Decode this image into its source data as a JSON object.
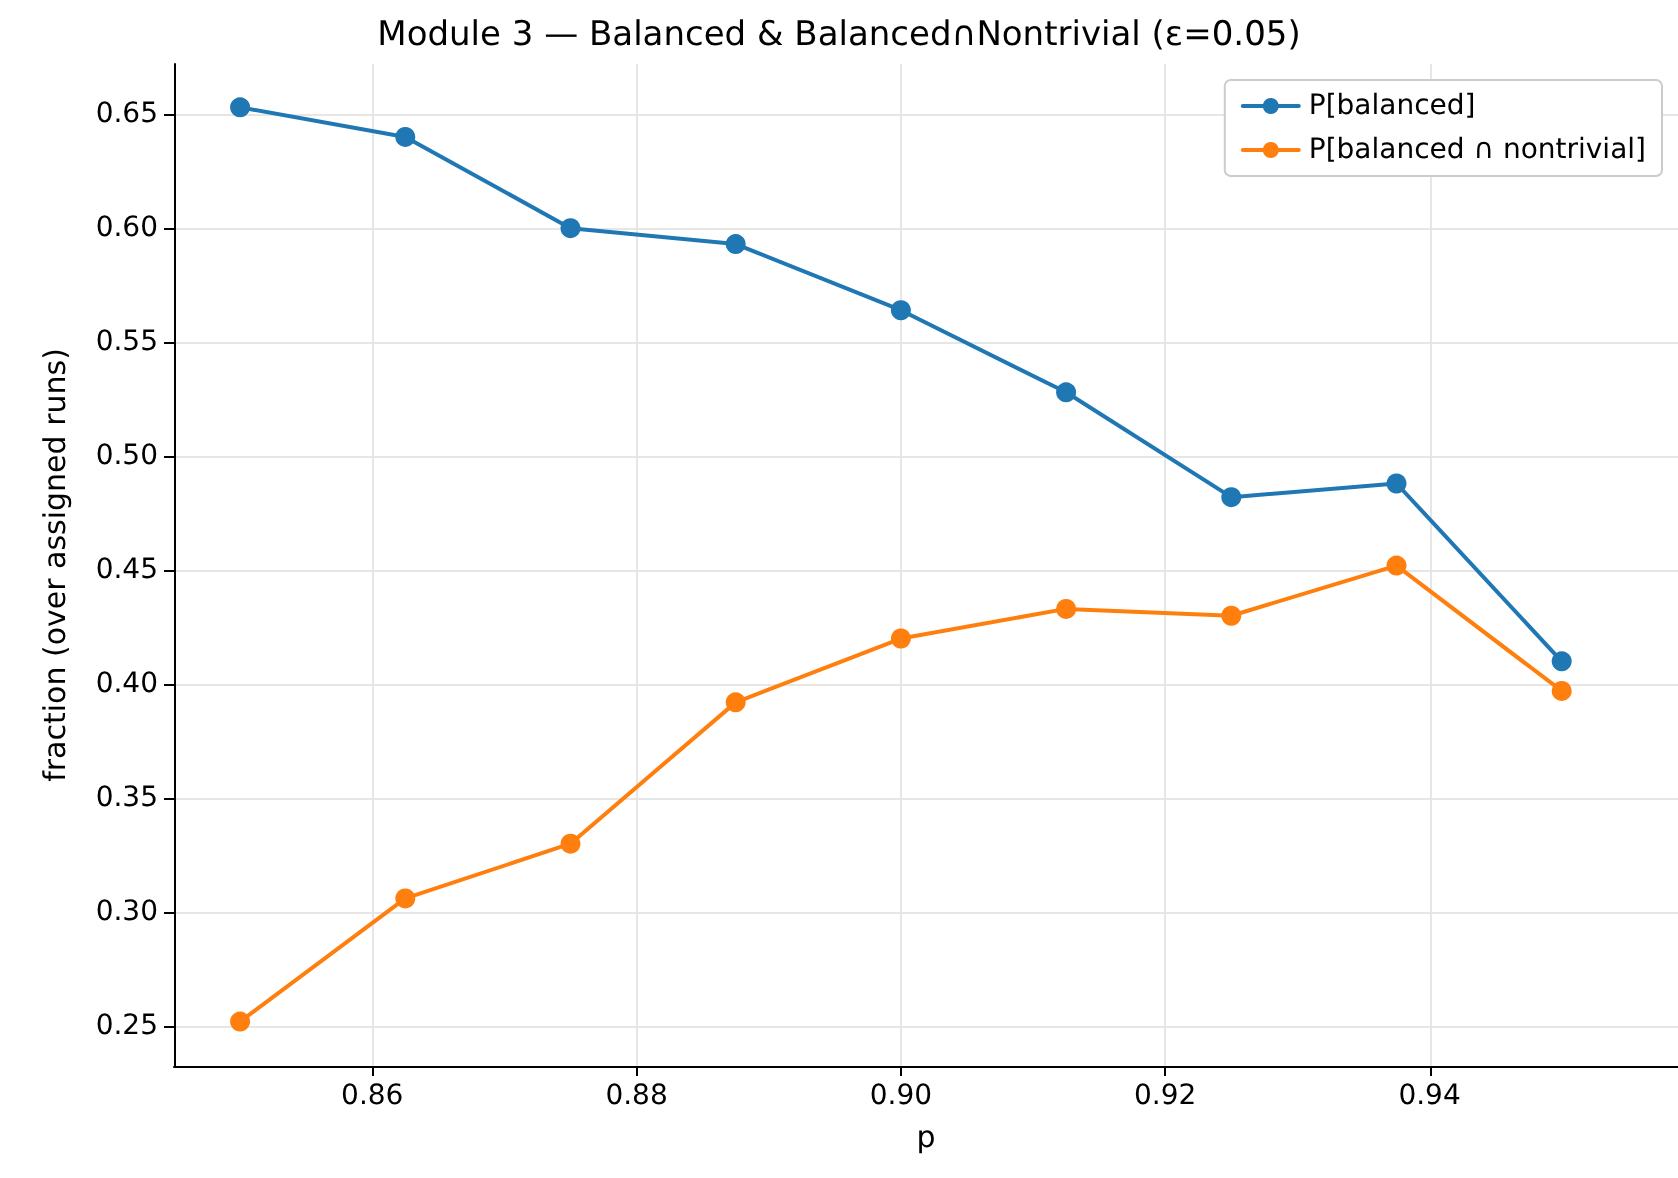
{
  "chart_data": {
    "type": "line",
    "title": "Module 3 — Balanced & Balanced∩Nontrivial (ε=0.05)",
    "xlabel": "p",
    "ylabel": "fraction (over assigned runs)",
    "x": [
      0.85,
      0.8625,
      0.875,
      0.8875,
      0.9,
      0.9125,
      0.925,
      0.9375,
      0.95
    ],
    "series": [
      {
        "name": "P[balanced]",
        "color": "#1f77b4",
        "values": [
          0.653,
          0.64,
          0.6,
          0.593,
          0.564,
          0.528,
          0.482,
          0.488,
          0.41
        ]
      },
      {
        "name": "P[balanced ∩ nontrivial]",
        "color": "#ff7f0e",
        "values": [
          0.252,
          0.306,
          0.33,
          0.392,
          0.42,
          0.433,
          0.43,
          0.452,
          0.397
        ]
      }
    ],
    "xlim": [
      0.845,
      0.9588
    ],
    "ylim": [
      0.2325,
      0.672
    ],
    "xticks": [
      {
        "value": 0.86,
        "label": "0.86"
      },
      {
        "value": 0.88,
        "label": "0.88"
      },
      {
        "value": 0.9,
        "label": "0.90"
      },
      {
        "value": 0.92,
        "label": "0.92"
      },
      {
        "value": 0.94,
        "label": "0.94"
      }
    ],
    "yticks": [
      {
        "value": 0.25,
        "label": "0.25"
      },
      {
        "value": 0.3,
        "label": "0.30"
      },
      {
        "value": 0.35,
        "label": "0.35"
      },
      {
        "value": 0.4,
        "label": "0.40"
      },
      {
        "value": 0.45,
        "label": "0.45"
      },
      {
        "value": 0.5,
        "label": "0.50"
      },
      {
        "value": 0.55,
        "label": "0.55"
      },
      {
        "value": 0.6,
        "label": "0.60"
      },
      {
        "value": 0.65,
        "label": "0.65"
      }
    ],
    "grid": true,
    "legend": "top right",
    "marker": "circle",
    "line_style": "solid"
  }
}
